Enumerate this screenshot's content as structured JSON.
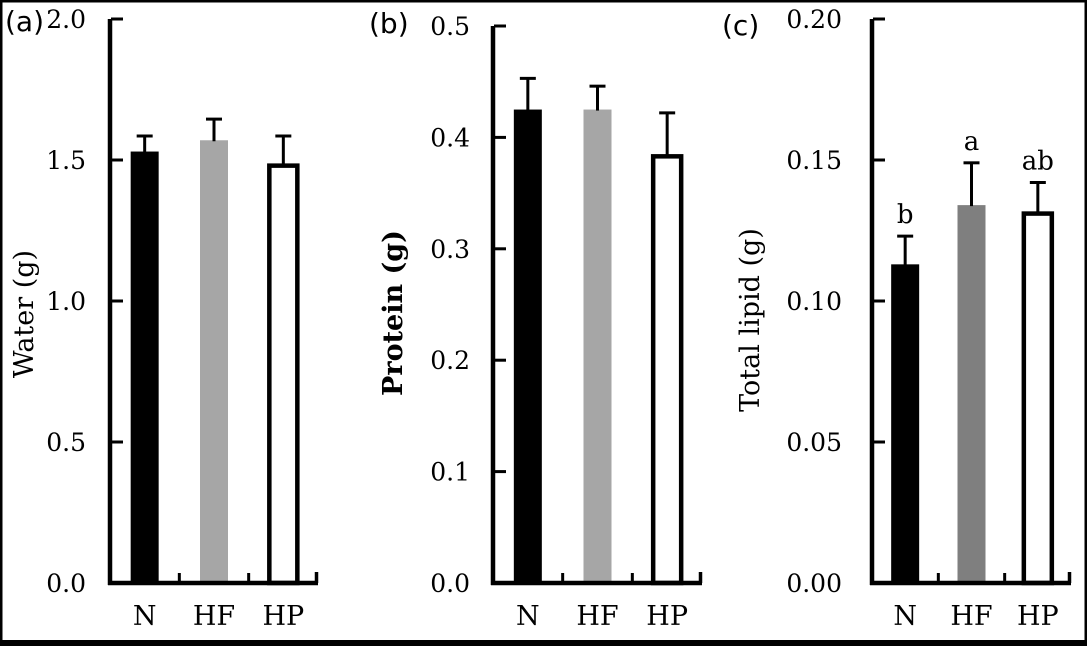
{
  "figure": {
    "background": "#ffffff",
    "border_color": "#000000",
    "text_color": "#000000"
  },
  "chart_data": [
    {
      "type": "bar",
      "panel_label": "(a)",
      "title": "",
      "xlabel": "",
      "ylabel": "Water (g)",
      "ylabel_bold": false,
      "categories": [
        "N",
        "HF",
        "HP"
      ],
      "values": [
        1.53,
        1.57,
        1.48
      ],
      "errors": [
        0.055,
        0.075,
        0.105
      ],
      "sig_letters": [
        "",
        "",
        ""
      ],
      "ylim": [
        0,
        2.0
      ],
      "ytick_values": [
        0,
        0.5,
        1.0,
        1.5,
        2.0
      ],
      "ytick_labels": [
        "0.0",
        "0.5",
        "1.0",
        "1.5",
        "2.0"
      ],
      "bar_colors": [
        "#000000",
        "#a6a6a6",
        "#ffffff"
      ],
      "bar_outlined": [
        false,
        false,
        true
      ],
      "grid": false,
      "legend": "none"
    },
    {
      "type": "bar",
      "panel_label": "(b)",
      "title": "",
      "xlabel": "",
      "ylabel": "Protein (g)",
      "ylabel_bold": true,
      "categories": [
        "N",
        "HF",
        "HP"
      ],
      "values": [
        0.425,
        0.425,
        0.383
      ],
      "errors": [
        0.028,
        0.021,
        0.039
      ],
      "sig_letters": [
        "",
        "",
        ""
      ],
      "ylim": [
        0,
        0.5
      ],
      "ytick_values": [
        0,
        0.1,
        0.2,
        0.3,
        0.4,
        0.5
      ],
      "ytick_labels": [
        "0.0",
        "0.1",
        "0.2",
        "0.3",
        "0.4",
        "0.5"
      ],
      "bar_colors": [
        "#000000",
        "#a6a6a6",
        "#ffffff"
      ],
      "bar_outlined": [
        false,
        false,
        true
      ],
      "grid": false,
      "legend": "none"
    },
    {
      "type": "bar",
      "panel_label": "(c)",
      "title": "",
      "xlabel": "",
      "ylabel": "Total lipid (g)",
      "ylabel_bold": false,
      "categories": [
        "N",
        "HF",
        "HP"
      ],
      "values": [
        0.113,
        0.134,
        0.131
      ],
      "errors": [
        0.01,
        0.015,
        0.011
      ],
      "sig_letters": [
        "b",
        "a",
        "ab"
      ],
      "ylim": [
        0,
        0.2
      ],
      "ytick_values": [
        0,
        0.05,
        0.1,
        0.15,
        0.2
      ],
      "ytick_labels": [
        "0.00",
        "0.05",
        "0.10",
        "0.15",
        "0.20"
      ],
      "bar_colors": [
        "#000000",
        "#7f7f7f",
        "#ffffff"
      ],
      "bar_outlined": [
        false,
        false,
        true
      ],
      "grid": false,
      "legend": "none"
    }
  ]
}
